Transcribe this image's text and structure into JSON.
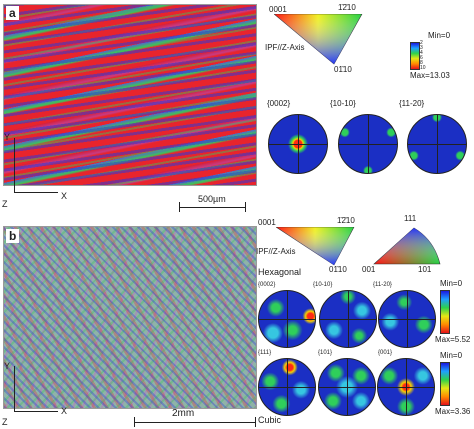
{
  "panel_a": {
    "label": "a",
    "axis_y": "Y",
    "axis_x": "X",
    "axis_z": "Z",
    "scale_bar": "500µm",
    "ipf_corner_0001": "0001",
    "ipf_corner_1210": "1̄2̄10",
    "ipf_corner_0110": "01̄10",
    "ipf_title": "IPF//Z-Axis",
    "colorbar_min": "Min=0",
    "colorbar_ticks": [
      "2",
      "3",
      "4",
      "6",
      "8",
      "10"
    ],
    "colorbar_max": "Max=13.03",
    "pole_figure_labels": [
      "{0002}",
      "{10-10}",
      "{11-20}"
    ]
  },
  "panel_b": {
    "label": "b",
    "axis_y": "Y",
    "axis_x": "X",
    "axis_z": "Z",
    "scale_bar": "2mm",
    "ipf_corner_0001": "0001",
    "ipf_corner_1210": "1̄2̄10",
    "ipf_corner_0110": "01̄10",
    "ipf_title": "IPF//Z-Axis",
    "cubic_corner_111": "111",
    "cubic_corner_001": "001",
    "cubic_corner_101": "101",
    "hexagonal_label": "Hexagonal",
    "cubic_label": "Cubic",
    "hex_pole_labels": [
      "{0002}",
      "{10-10}",
      "{11-20}"
    ],
    "cubic_pole_labels": [
      "{111}",
      "{101}",
      "{001}"
    ],
    "hex_colorbar_min": "Min=0",
    "hex_colorbar_max": "Max=5.52",
    "cubic_colorbar_min": "Min=0",
    "cubic_colorbar_max": "Max=3.36"
  },
  "colors": {
    "map_red": "#e8242c",
    "map_green": "#3cc35a",
    "map_blue": "#2f38d8",
    "pole_bg_blue": "#1b2fc4",
    "pole_hot": "#ff2a14"
  }
}
